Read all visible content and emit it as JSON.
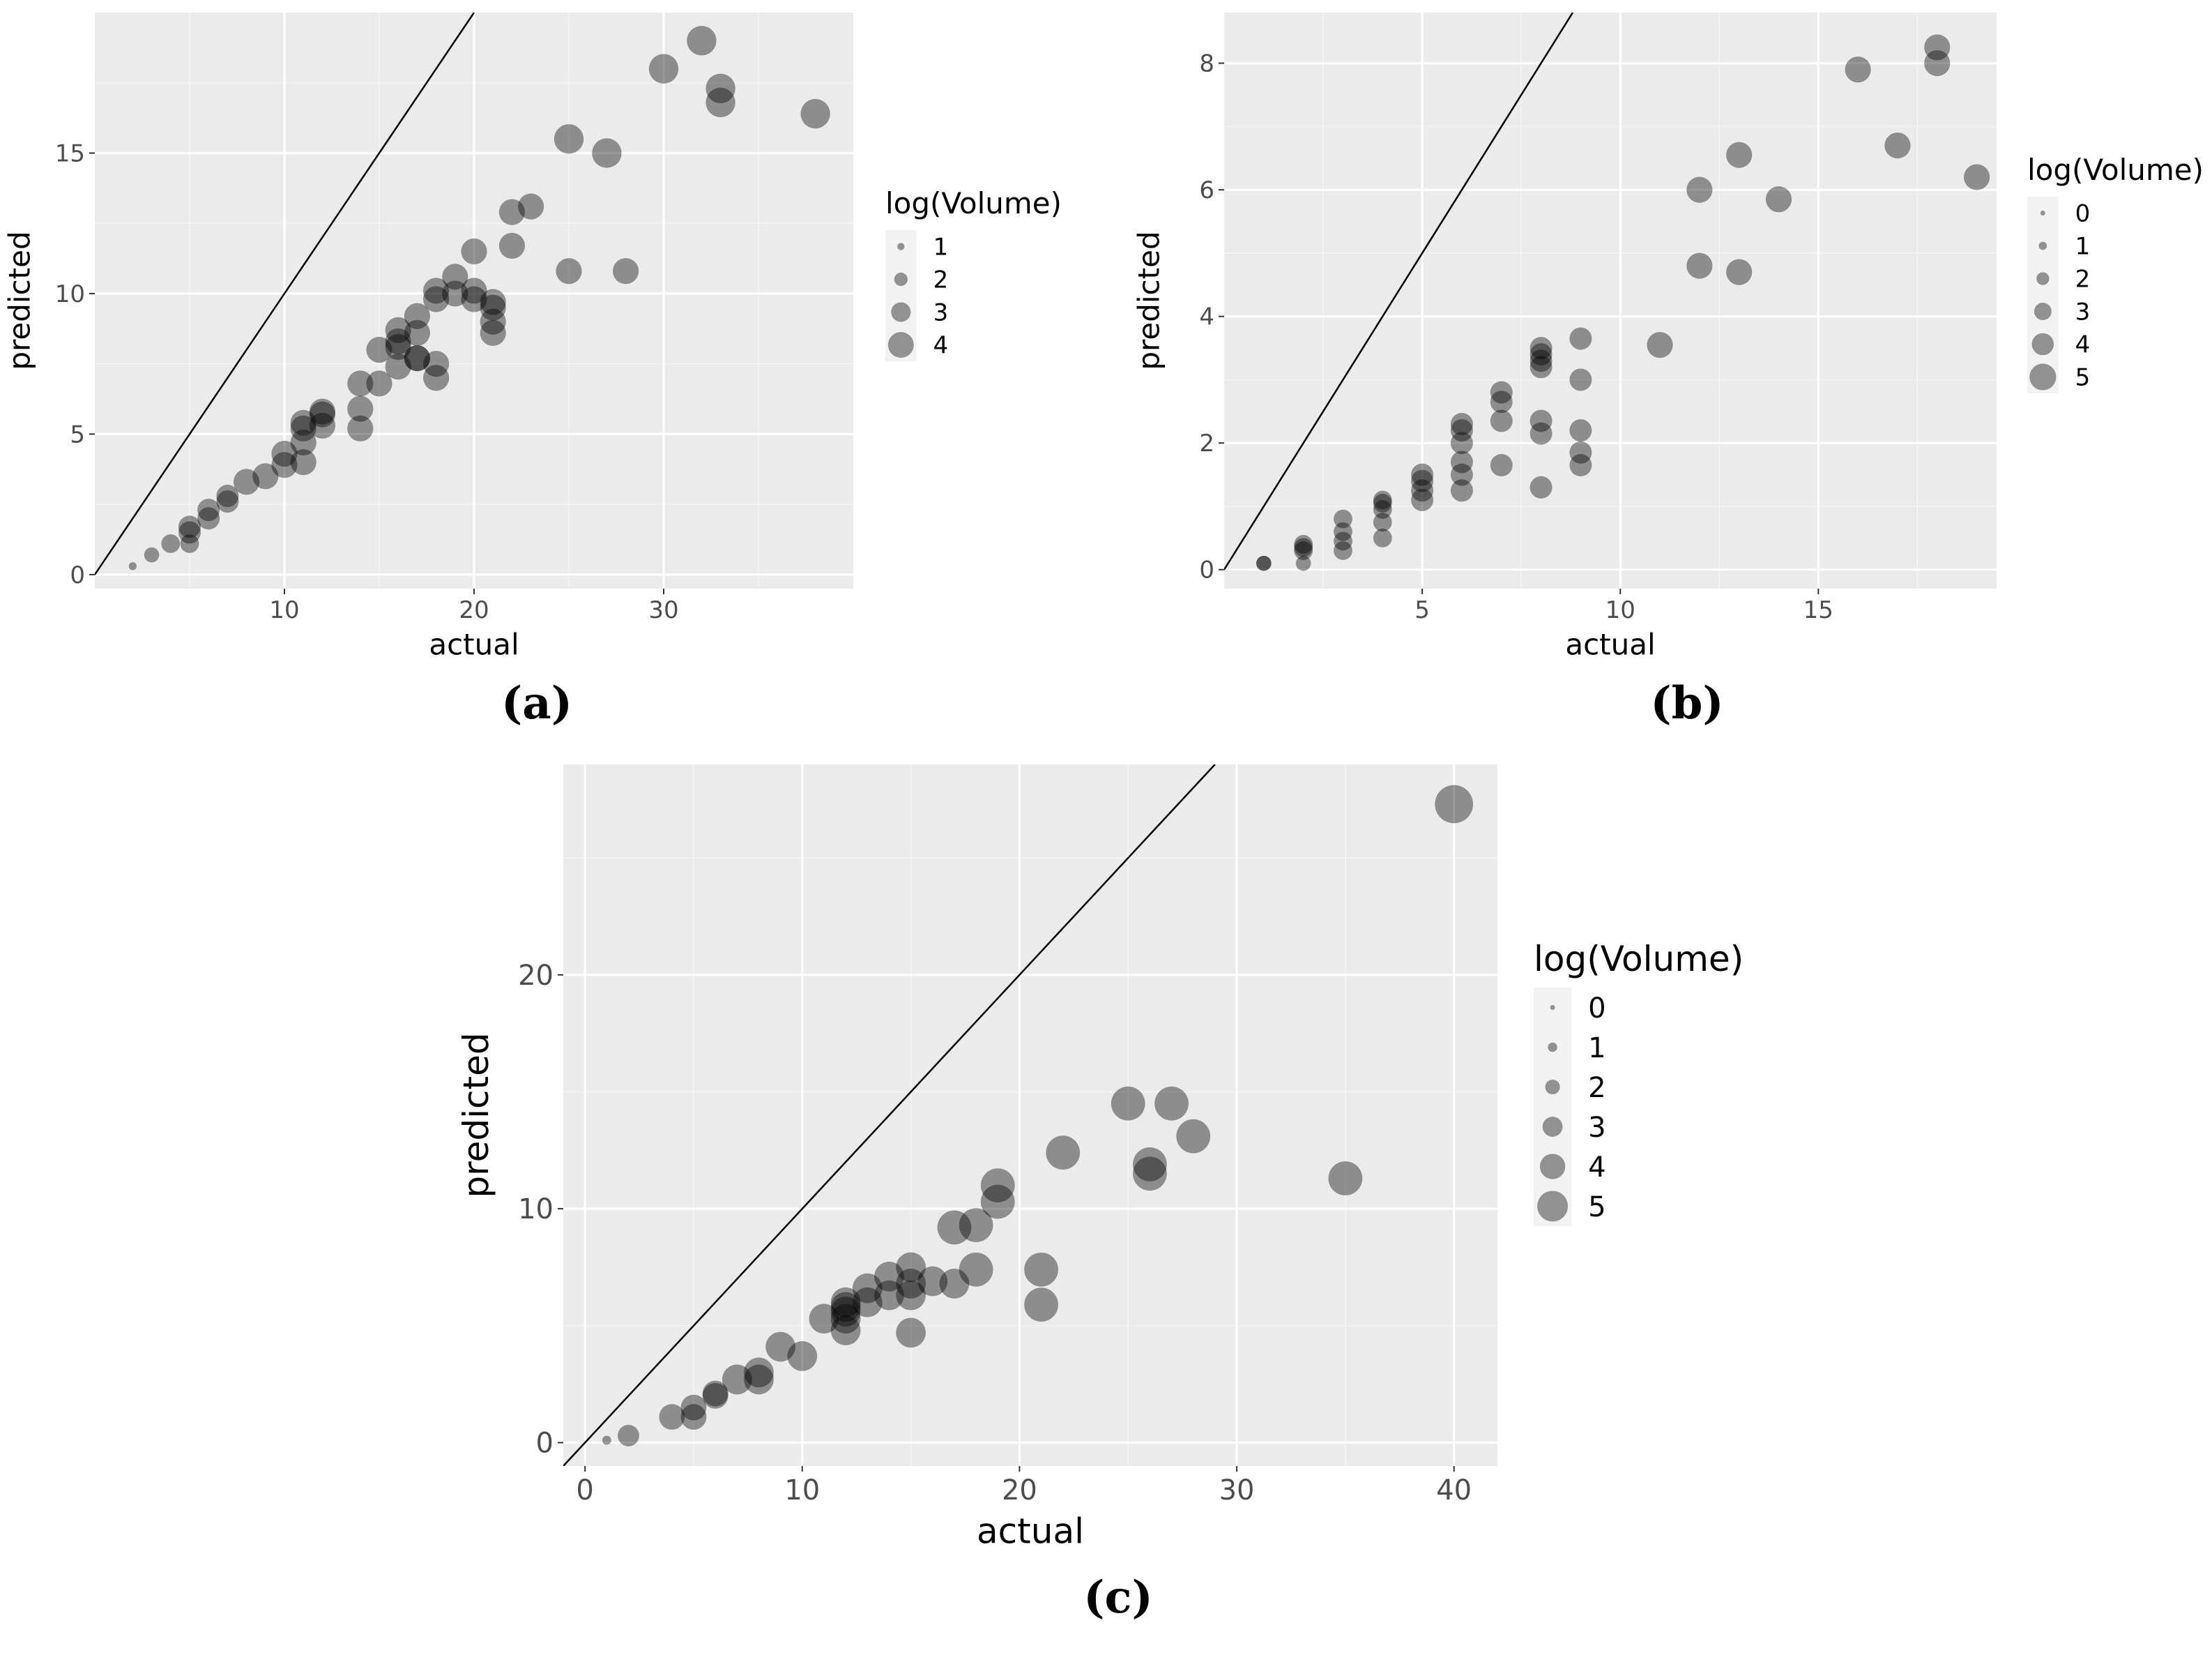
{
  "chart_data": [
    {
      "type": "scatter",
      "id": "a",
      "caption": "(a)",
      "xlabel": "actual",
      "ylabel": "predicted",
      "xlim": [
        0,
        40
      ],
      "ylim": [
        -0.5,
        20
      ],
      "xticks": [
        10,
        20,
        30
      ],
      "yticks": [
        0,
        5,
        10,
        15
      ],
      "reference_line": "y = x",
      "legend": {
        "title": "log(Volume)",
        "position": "right",
        "levels": [
          1,
          2,
          3,
          4
        ]
      },
      "points": [
        {
          "x": 2,
          "y": 0.3,
          "size": 0.5
        },
        {
          "x": 3,
          "y": 0.7,
          "size": 1.5
        },
        {
          "x": 4,
          "y": 1.1,
          "size": 2
        },
        {
          "x": 5,
          "y": 1.5,
          "size": 2.5
        },
        {
          "x": 5,
          "y": 1.7,
          "size": 2.5
        },
        {
          "x": 5,
          "y": 1.1,
          "size": 2
        },
        {
          "x": 6,
          "y": 2.0,
          "size": 2.5
        },
        {
          "x": 6,
          "y": 2.3,
          "size": 2.5
        },
        {
          "x": 7,
          "y": 2.6,
          "size": 2.5
        },
        {
          "x": 7,
          "y": 2.8,
          "size": 2.5
        },
        {
          "x": 8,
          "y": 3.3,
          "size": 3
        },
        {
          "x": 9,
          "y": 3.5,
          "size": 3
        },
        {
          "x": 10,
          "y": 3.9,
          "size": 3
        },
        {
          "x": 10,
          "y": 4.3,
          "size": 3
        },
        {
          "x": 11,
          "y": 4.0,
          "size": 3
        },
        {
          "x": 11,
          "y": 4.7,
          "size": 3
        },
        {
          "x": 11,
          "y": 5.2,
          "size": 3
        },
        {
          "x": 11,
          "y": 5.4,
          "size": 3
        },
        {
          "x": 12,
          "y": 5.3,
          "size": 3
        },
        {
          "x": 12,
          "y": 5.7,
          "size": 3
        },
        {
          "x": 12,
          "y": 5.8,
          "size": 3
        },
        {
          "x": 14,
          "y": 5.2,
          "size": 3
        },
        {
          "x": 14,
          "y": 5.9,
          "size": 3
        },
        {
          "x": 14,
          "y": 6.8,
          "size": 3
        },
        {
          "x": 15,
          "y": 6.8,
          "size": 3
        },
        {
          "x": 15,
          "y": 8.0,
          "size": 3
        },
        {
          "x": 16,
          "y": 7.4,
          "size": 3
        },
        {
          "x": 16,
          "y": 8.1,
          "size": 3
        },
        {
          "x": 16,
          "y": 8.3,
          "size": 3
        },
        {
          "x": 16,
          "y": 8.7,
          "size": 3
        },
        {
          "x": 17,
          "y": 7.7,
          "size": 3
        },
        {
          "x": 17,
          "y": 7.7,
          "size": 3
        },
        {
          "x": 17,
          "y": 8.6,
          "size": 3
        },
        {
          "x": 17,
          "y": 9.2,
          "size": 3
        },
        {
          "x": 18,
          "y": 7.0,
          "size": 3
        },
        {
          "x": 18,
          "y": 7.5,
          "size": 3
        },
        {
          "x": 18,
          "y": 9.8,
          "size": 3
        },
        {
          "x": 18,
          "y": 10.1,
          "size": 3
        },
        {
          "x": 19,
          "y": 10.0,
          "size": 3
        },
        {
          "x": 19,
          "y": 10.6,
          "size": 3
        },
        {
          "x": 20,
          "y": 9.8,
          "size": 3
        },
        {
          "x": 20,
          "y": 10.1,
          "size": 3
        },
        {
          "x": 20,
          "y": 11.5,
          "size": 3
        },
        {
          "x": 21,
          "y": 8.6,
          "size": 3
        },
        {
          "x": 21,
          "y": 9.0,
          "size": 3
        },
        {
          "x": 21,
          "y": 9.5,
          "size": 3
        },
        {
          "x": 21,
          "y": 9.7,
          "size": 3
        },
        {
          "x": 22,
          "y": 11.7,
          "size": 3
        },
        {
          "x": 22,
          "y": 12.9,
          "size": 3
        },
        {
          "x": 23,
          "y": 13.1,
          "size": 3
        },
        {
          "x": 25,
          "y": 10.8,
          "size": 3
        },
        {
          "x": 25,
          "y": 15.5,
          "size": 3.5
        },
        {
          "x": 27,
          "y": 15.0,
          "size": 3.5
        },
        {
          "x": 28,
          "y": 10.8,
          "size": 3
        },
        {
          "x": 30,
          "y": 18.0,
          "size": 3.5
        },
        {
          "x": 32,
          "y": 19.0,
          "size": 3.5
        },
        {
          "x": 33,
          "y": 17.3,
          "size": 3.5
        },
        {
          "x": 33,
          "y": 16.8,
          "size": 3.5
        },
        {
          "x": 38,
          "y": 16.4,
          "size": 3.5
        }
      ]
    },
    {
      "type": "scatter",
      "id": "b",
      "caption": "(b)",
      "xlabel": "actual",
      "ylabel": "predicted",
      "xlim": [
        0,
        19.5
      ],
      "ylim": [
        -0.3,
        8.8
      ],
      "xticks": [
        5,
        10,
        15
      ],
      "yticks": [
        0,
        2,
        4,
        6,
        8
      ],
      "reference_line": "y = x",
      "legend": {
        "title": "log(Volume)",
        "position": "right",
        "levels": [
          0,
          1,
          2,
          3,
          4,
          5
        ]
      },
      "points": [
        {
          "x": 1,
          "y": 0.1,
          "size": 1.5
        },
        {
          "x": 1,
          "y": 0.1,
          "size": 1.5
        },
        {
          "x": 2,
          "y": 0.1,
          "size": 1.5
        },
        {
          "x": 2,
          "y": 0.3,
          "size": 2
        },
        {
          "x": 2,
          "y": 0.35,
          "size": 2
        },
        {
          "x": 2,
          "y": 0.4,
          "size": 2
        },
        {
          "x": 3,
          "y": 0.3,
          "size": 2
        },
        {
          "x": 3,
          "y": 0.45,
          "size": 2
        },
        {
          "x": 3,
          "y": 0.6,
          "size": 2
        },
        {
          "x": 3,
          "y": 0.8,
          "size": 2
        },
        {
          "x": 4,
          "y": 0.5,
          "size": 2
        },
        {
          "x": 4,
          "y": 0.75,
          "size": 2
        },
        {
          "x": 4,
          "y": 0.95,
          "size": 2
        },
        {
          "x": 4,
          "y": 1.05,
          "size": 2
        },
        {
          "x": 4,
          "y": 1.1,
          "size": 2
        },
        {
          "x": 5,
          "y": 1.1,
          "size": 2.5
        },
        {
          "x": 5,
          "y": 1.25,
          "size": 2.5
        },
        {
          "x": 5,
          "y": 1.4,
          "size": 2.5
        },
        {
          "x": 5,
          "y": 1.5,
          "size": 2.5
        },
        {
          "x": 6,
          "y": 1.25,
          "size": 2.5
        },
        {
          "x": 6,
          "y": 1.5,
          "size": 2.5
        },
        {
          "x": 6,
          "y": 1.7,
          "size": 2.5
        },
        {
          "x": 6,
          "y": 2.0,
          "size": 2.5
        },
        {
          "x": 6,
          "y": 2.2,
          "size": 2.5
        },
        {
          "x": 6,
          "y": 2.3,
          "size": 2.5
        },
        {
          "x": 7,
          "y": 1.65,
          "size": 2.5
        },
        {
          "x": 7,
          "y": 2.35,
          "size": 2.5
        },
        {
          "x": 7,
          "y": 2.65,
          "size": 2.5
        },
        {
          "x": 7,
          "y": 2.8,
          "size": 2.5
        },
        {
          "x": 8,
          "y": 1.3,
          "size": 2.5
        },
        {
          "x": 8,
          "y": 2.15,
          "size": 2.5
        },
        {
          "x": 8,
          "y": 2.35,
          "size": 2.5
        },
        {
          "x": 8,
          "y": 3.2,
          "size": 2.5
        },
        {
          "x": 8,
          "y": 3.3,
          "size": 2.5
        },
        {
          "x": 8,
          "y": 3.4,
          "size": 2.5
        },
        {
          "x": 8,
          "y": 3.5,
          "size": 2.5
        },
        {
          "x": 9,
          "y": 1.65,
          "size": 2.5
        },
        {
          "x": 9,
          "y": 1.85,
          "size": 2.5
        },
        {
          "x": 9,
          "y": 2.2,
          "size": 2.5
        },
        {
          "x": 9,
          "y": 3.0,
          "size": 2.5
        },
        {
          "x": 9,
          "y": 3.65,
          "size": 2.5
        },
        {
          "x": 11,
          "y": 3.55,
          "size": 3
        },
        {
          "x": 12,
          "y": 4.8,
          "size": 3
        },
        {
          "x": 12,
          "y": 6.0,
          "size": 3
        },
        {
          "x": 13,
          "y": 4.7,
          "size": 3
        },
        {
          "x": 13,
          "y": 6.55,
          "size": 3
        },
        {
          "x": 14,
          "y": 5.85,
          "size": 3
        },
        {
          "x": 16,
          "y": 7.9,
          "size": 3
        },
        {
          "x": 17,
          "y": 6.7,
          "size": 3
        },
        {
          "x": 18,
          "y": 8.0,
          "size": 3
        },
        {
          "x": 18,
          "y": 8.25,
          "size": 3
        },
        {
          "x": 19,
          "y": 6.2,
          "size": 3
        }
      ]
    },
    {
      "type": "scatter",
      "id": "c",
      "caption": "(c)",
      "xlabel": "actual",
      "ylabel": "predicted",
      "xlim": [
        -1,
        42
      ],
      "ylim": [
        -1,
        29
      ],
      "xticks": [
        0,
        10,
        20,
        30,
        40
      ],
      "yticks": [
        0,
        10,
        20
      ],
      "reference_line": "y = x",
      "legend": {
        "title": "log(Volume)",
        "position": "right",
        "levels": [
          0,
          1,
          2,
          3,
          4,
          5
        ]
      },
      "points": [
        {
          "x": 1,
          "y": 0.1,
          "size": 0.5
        },
        {
          "x": 2,
          "y": 0.3,
          "size": 2
        },
        {
          "x": 4,
          "y": 1.1,
          "size": 2.5
        },
        {
          "x": 5,
          "y": 1.1,
          "size": 2.5
        },
        {
          "x": 5,
          "y": 1.5,
          "size": 2.5
        },
        {
          "x": 6,
          "y": 2.0,
          "size": 2.5
        },
        {
          "x": 6,
          "y": 2.1,
          "size": 2.5
        },
        {
          "x": 7,
          "y": 2.7,
          "size": 3
        },
        {
          "x": 8,
          "y": 2.7,
          "size": 3
        },
        {
          "x": 8,
          "y": 3.0,
          "size": 3
        },
        {
          "x": 9,
          "y": 4.1,
          "size": 3
        },
        {
          "x": 10,
          "y": 3.7,
          "size": 3
        },
        {
          "x": 11,
          "y": 5.3,
          "size": 3
        },
        {
          "x": 12,
          "y": 4.8,
          "size": 3
        },
        {
          "x": 12,
          "y": 5.3,
          "size": 3
        },
        {
          "x": 12,
          "y": 5.6,
          "size": 3
        },
        {
          "x": 12,
          "y": 5.8,
          "size": 3
        },
        {
          "x": 12,
          "y": 6.0,
          "size": 3
        },
        {
          "x": 13,
          "y": 6.0,
          "size": 3
        },
        {
          "x": 13,
          "y": 6.6,
          "size": 3
        },
        {
          "x": 14,
          "y": 6.3,
          "size": 3
        },
        {
          "x": 14,
          "y": 7.1,
          "size": 3
        },
        {
          "x": 15,
          "y": 4.7,
          "size": 3
        },
        {
          "x": 15,
          "y": 6.3,
          "size": 3
        },
        {
          "x": 15,
          "y": 6.8,
          "size": 3
        },
        {
          "x": 15,
          "y": 7.5,
          "size": 3
        },
        {
          "x": 16,
          "y": 6.9,
          "size": 3
        },
        {
          "x": 17,
          "y": 6.8,
          "size": 3
        },
        {
          "x": 17,
          "y": 9.2,
          "size": 3.5
        },
        {
          "x": 18,
          "y": 7.4,
          "size": 3.5
        },
        {
          "x": 18,
          "y": 9.3,
          "size": 3.5
        },
        {
          "x": 19,
          "y": 10.3,
          "size": 3.5
        },
        {
          "x": 19,
          "y": 11.0,
          "size": 3.5
        },
        {
          "x": 21,
          "y": 5.9,
          "size": 3.5
        },
        {
          "x": 21,
          "y": 7.4,
          "size": 3.5
        },
        {
          "x": 22,
          "y": 12.4,
          "size": 3.5
        },
        {
          "x": 25,
          "y": 14.5,
          "size": 3.5
        },
        {
          "x": 26,
          "y": 11.5,
          "size": 3.5
        },
        {
          "x": 26,
          "y": 11.9,
          "size": 3.5
        },
        {
          "x": 27,
          "y": 14.5,
          "size": 3.5
        },
        {
          "x": 28,
          "y": 13.1,
          "size": 3.5
        },
        {
          "x": 35,
          "y": 11.3,
          "size": 3.5
        },
        {
          "x": 40,
          "y": 27.3,
          "size": 4
        }
      ]
    }
  ]
}
